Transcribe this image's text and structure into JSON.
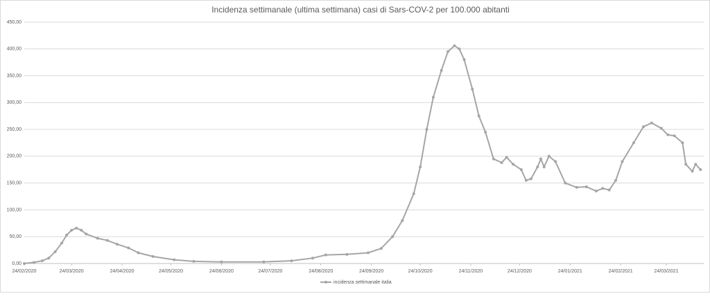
{
  "chart_data": {
    "type": "line",
    "title": "Incidenza settimanale (ultima settimana) casi di Sars-COV-2 per 100.000 abitanti",
    "x": [
      "24/02/2020",
      "01/03/2020",
      "06/03/2020",
      "10/03/2020",
      "14/03/2020",
      "18/03/2020",
      "21/03/2020",
      "24/03/2020",
      "27/03/2020",
      "30/03/2020",
      "02/04/2020",
      "09/04/2020",
      "15/04/2020",
      "21/04/2020",
      "28/04/2020",
      "04/05/2020",
      "13/05/2020",
      "26/05/2020",
      "07/06/2020",
      "24/06/2020",
      "20/07/2020",
      "06/08/2020",
      "19/08/2020",
      "27/08/2020",
      "09/09/2020",
      "22/09/2020",
      "30/09/2020",
      "07/10/2020",
      "13/10/2020",
      "20/10/2020",
      "24/10/2020",
      "28/10/2020",
      "01/11/2020",
      "06/11/2020",
      "10/11/2020",
      "14/11/2020",
      "17/11/2020",
      "20/11/2020",
      "25/11/2020",
      "29/11/2020",
      "03/12/2020",
      "08/12/2020",
      "13/12/2020",
      "16/12/2020",
      "20/12/2020",
      "25/12/2020",
      "28/12/2020",
      "31/12/2020",
      "04/01/2021",
      "06/01/2021",
      "08/01/2021",
      "11/01/2021",
      "15/01/2021",
      "21/01/2021",
      "28/01/2021",
      "03/02/2021",
      "09/02/2021",
      "13/02/2021",
      "17/02/2021",
      "21/02/2021",
      "25/02/2021",
      "04/03/2021",
      "10/03/2021",
      "15/03/2021",
      "21/03/2021",
      "25/03/2021",
      "29/03/2021",
      "03/04/2021",
      "05/04/2021",
      "09/04/2021",
      "11/04/2021",
      "14/04/2021"
    ],
    "series": [
      {
        "name": "incidenza settimanale italia",
        "color": "#a5a5a5",
        "values": [
          0,
          2,
          5,
          10,
          22,
          38,
          53,
          62,
          66,
          62,
          55,
          47,
          43,
          36,
          29,
          20,
          13,
          7,
          4,
          3,
          3,
          5,
          10,
          16,
          17,
          20,
          28,
          50,
          80,
          130,
          180,
          250,
          310,
          360,
          395,
          406,
          400,
          380,
          325,
          275,
          245,
          195,
          188,
          198,
          185,
          175,
          155,
          158,
          180,
          195,
          180,
          200,
          190,
          150,
          142,
          143,
          135,
          140,
          137,
          155,
          190,
          225,
          255,
          262,
          252,
          240,
          238,
          225,
          185,
          172,
          185,
          175
        ]
      }
    ],
    "xlim": [
      "24/02/2020",
      "16/04/2021"
    ],
    "xticks": [
      "24/02/2020",
      "24/03/2020",
      "24/04/2020",
      "24/05/2020",
      "24/06/2020",
      "24/07/2020",
      "24/08/2020",
      "24/09/2020",
      "24/10/2020",
      "24/11/2020",
      "24/12/2020",
      "24/01/2021",
      "24/02/2021",
      "24/03/2021"
    ],
    "ylim": [
      0,
      450
    ],
    "yticks": [
      {
        "value": 0,
        "label": "0,00"
      },
      {
        "value": 50,
        "label": "50,00"
      },
      {
        "value": 100,
        "label": "100,00"
      },
      {
        "value": 150,
        "label": "150,00"
      },
      {
        "value": 200,
        "label": "200,00"
      },
      {
        "value": 250,
        "label": "250,00"
      },
      {
        "value": 300,
        "label": "300,00"
      },
      {
        "value": 350,
        "label": "350,00"
      },
      {
        "value": 400,
        "label": "400,00"
      },
      {
        "value": 450,
        "label": "450,00"
      }
    ],
    "grid": true,
    "legend": "bottom"
  }
}
